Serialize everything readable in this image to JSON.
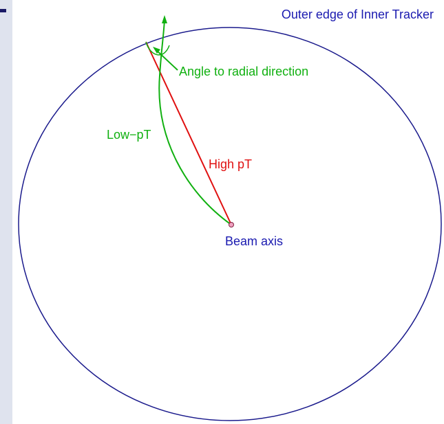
{
  "labels": {
    "outer_edge": "Outer edge of Inner Tracker",
    "angle": "Angle to radial direction",
    "low_pt": "Low−pT",
    "high_pt": "High pT",
    "beam_axis": "Beam axis"
  }
}
